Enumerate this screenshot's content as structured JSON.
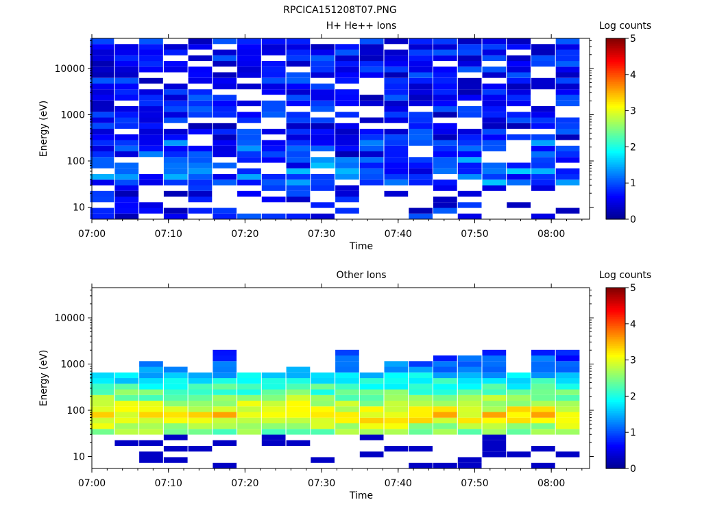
{
  "figure_title": "RPCICA151208T07.PNG",
  "colormap": [
    "#00008f",
    "#0000ff",
    "#0080ff",
    "#00ffff",
    "#80ff80",
    "#ffff00",
    "#ff8000",
    "#ff0000",
    "#800000"
  ],
  "chart_data": [
    {
      "type": "heatmap",
      "title": "H+ He++ Ions",
      "xlabel": "Time",
      "ylabel": "Energy (eV)",
      "colorbar_label": "Log counts",
      "colorbar_range": [
        0,
        5
      ],
      "colorbar_ticks": [
        "0",
        "1",
        "2",
        "3",
        "4",
        "5"
      ],
      "x_range_min": [
        0,
        65
      ],
      "x_ticks": [
        {
          "v": 0,
          "label": "07:00"
        },
        {
          "v": 10,
          "label": "07:10"
        },
        {
          "v": 20,
          "label": "07:20"
        },
        {
          "v": 30,
          "label": "07:30"
        },
        {
          "v": 40,
          "label": "07:40"
        },
        {
          "v": 50,
          "label": "07:50"
        },
        {
          "v": 60,
          "label": "08:00"
        }
      ],
      "y_scale": "log",
      "y_range": [
        5.5,
        45000
      ],
      "y_ticks": [
        {
          "v": 10,
          "label": "10"
        },
        {
          "v": 100,
          "label": "100"
        },
        {
          "v": 1000,
          "label": "1000"
        },
        {
          "v": 10000,
          "label": "10000"
        }
      ],
      "column_times_min": [
        1.3,
        4.5,
        7.7,
        10.9,
        14.1,
        17.3,
        20.5,
        23.7,
        26.9,
        30.1,
        33.3,
        36.5,
        39.7,
        42.9,
        46.1,
        49.3,
        52.5,
        55.7,
        58.9,
        62.1
      ],
      "profile": "hplus"
    },
    {
      "type": "heatmap",
      "title": "Other Ions",
      "xlabel": "Time",
      "ylabel": "Energy (eV)",
      "colorbar_label": "Log counts",
      "colorbar_range": [
        0,
        5
      ],
      "colorbar_ticks": [
        "0",
        "1",
        "2",
        "3",
        "4",
        "5"
      ],
      "x_range_min": [
        0,
        65
      ],
      "x_ticks": [
        {
          "v": 0,
          "label": "07:00"
        },
        {
          "v": 10,
          "label": "07:10"
        },
        {
          "v": 20,
          "label": "07:20"
        },
        {
          "v": 30,
          "label": "07:30"
        },
        {
          "v": 40,
          "label": "07:40"
        },
        {
          "v": 50,
          "label": "07:50"
        },
        {
          "v": 60,
          "label": "08:00"
        }
      ],
      "y_scale": "log",
      "y_range": [
        5.5,
        45000
      ],
      "y_ticks": [
        {
          "v": 10,
          "label": "10"
        },
        {
          "v": 100,
          "label": "100"
        },
        {
          "v": 1000,
          "label": "1000"
        },
        {
          "v": 10000,
          "label": "10000"
        }
      ],
      "column_times_min": [
        1.3,
        4.5,
        7.7,
        10.9,
        14.1,
        17.3,
        20.5,
        23.7,
        26.9,
        30.1,
        33.3,
        36.5,
        39.7,
        42.9,
        46.1,
        49.3,
        52.5,
        55.7,
        58.9,
        62.1
      ],
      "column_upper_energy_eV": [
        600,
        650,
        1200,
        1000,
        700,
        2300,
        620,
        680,
        900,
        720,
        2200,
        600,
        1100,
        1250,
        1500,
        1400,
        2200,
        600,
        1800,
        1800
      ],
      "peak_energy_eV": 80,
      "peak_log_counts": 3.6,
      "profile": "other"
    }
  ]
}
